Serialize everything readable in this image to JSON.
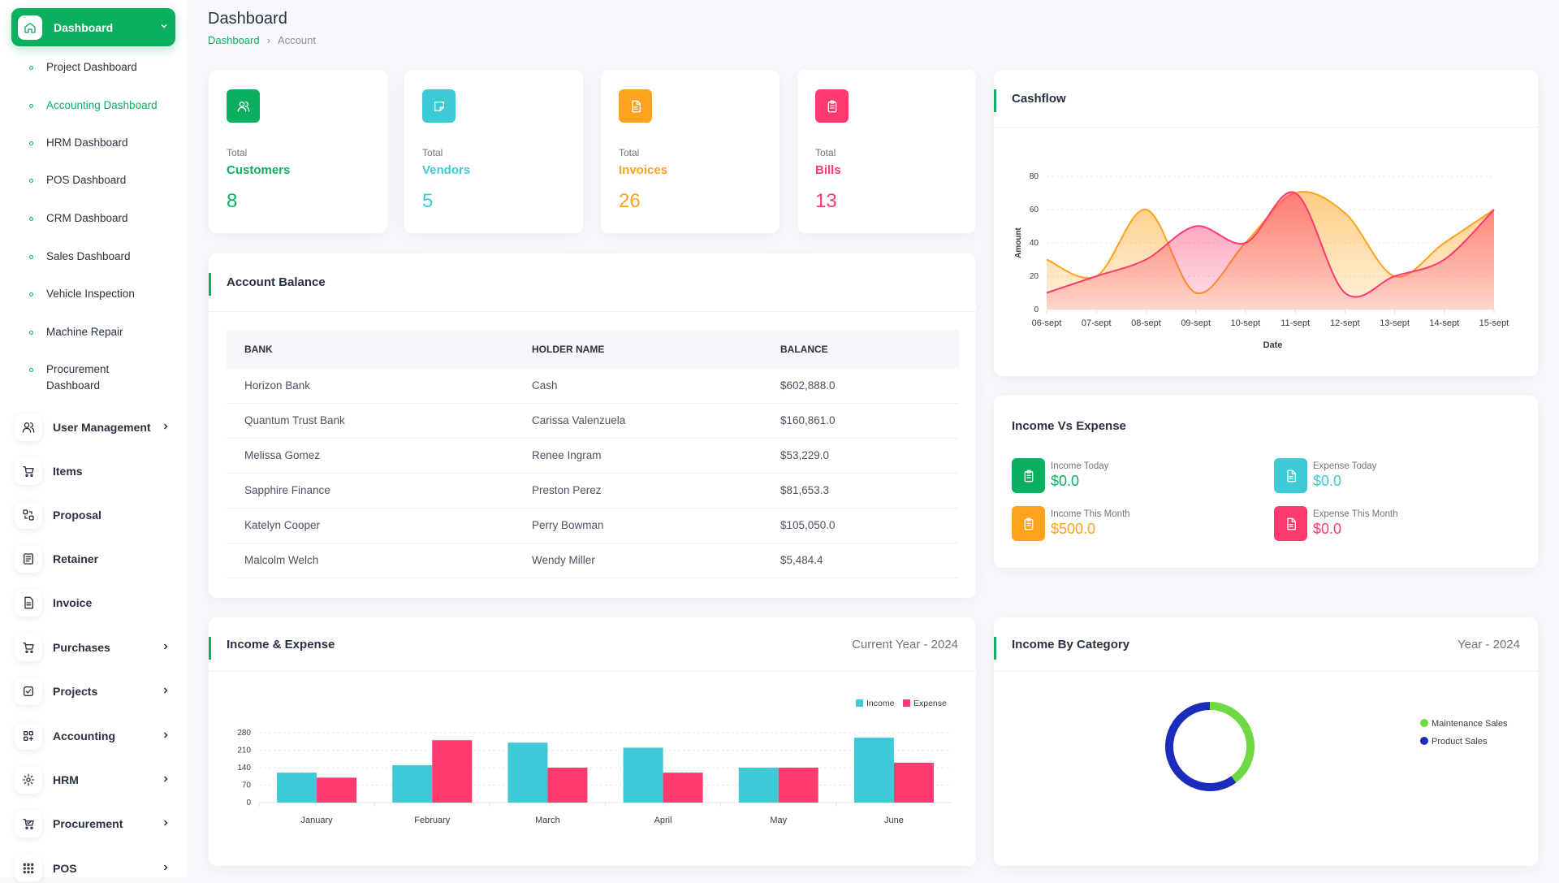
{
  "sidebar": {
    "active": {
      "label": "Dashboard"
    },
    "subitems": [
      {
        "label": "Project Dashboard"
      },
      {
        "label": "Accounting Dashboard"
      },
      {
        "label": "HRM Dashboard"
      },
      {
        "label": "POS Dashboard"
      },
      {
        "label": "CRM Dashboard"
      },
      {
        "label": "Sales Dashboard"
      },
      {
        "label": "Vehicle Inspection"
      },
      {
        "label": "Machine Repair"
      },
      {
        "label": "Procurement Dashboard"
      }
    ],
    "items": [
      {
        "label": "User Management",
        "icon": "users-icon",
        "chevron": true
      },
      {
        "label": "Items",
        "icon": "cart-icon",
        "chevron": false
      },
      {
        "label": "Proposal",
        "icon": "proposal-icon",
        "chevron": false
      },
      {
        "label": "Retainer",
        "icon": "retainer-icon",
        "chevron": false
      },
      {
        "label": "Invoice",
        "icon": "invoice-icon",
        "chevron": false
      },
      {
        "label": "Purchases",
        "icon": "cart-icon",
        "chevron": true
      },
      {
        "label": "Projects",
        "icon": "checkbox-icon",
        "chevron": true
      },
      {
        "label": "Accounting",
        "icon": "grid-icon",
        "chevron": true
      },
      {
        "label": "HRM",
        "icon": "hrm-icon",
        "chevron": true
      },
      {
        "label": "Procurement",
        "icon": "procurement-icon",
        "chevron": true
      },
      {
        "label": "POS",
        "icon": "dots-grid-icon",
        "chevron": true
      }
    ]
  },
  "header": {
    "title": "Dashboard",
    "breadcrumb": [
      "Dashboard",
      "Account"
    ]
  },
  "stats": [
    {
      "small": "Total",
      "name": "Customers",
      "value": "8",
      "color": "#0caf60",
      "icon": "users-icon"
    },
    {
      "small": "Total",
      "name": "Vendors",
      "value": "5",
      "color": "#3ec9d6",
      "icon": "note-icon"
    },
    {
      "small": "Total",
      "name": "Invoices",
      "value": "26",
      "color": "#ffa21d",
      "icon": "file-icon"
    },
    {
      "small": "Total",
      "name": "Bills",
      "value": "13",
      "color": "#ff3a6e",
      "icon": "clipboard-icon"
    }
  ],
  "account_balance": {
    "title": "Account Balance",
    "columns": [
      "BANK",
      "HOLDER NAME",
      "BALANCE"
    ],
    "rows": [
      [
        "Horizon Bank",
        "Cash",
        "$602,888.0"
      ],
      [
        "Quantum Trust Bank",
        "Carissa Valenzuela",
        "$160,861.0"
      ],
      [
        "Melissa Gomez",
        "Renee Ingram",
        "$53,229.0"
      ],
      [
        "Sapphire Finance",
        "Preston Perez",
        "$81,653.3"
      ],
      [
        "Katelyn Cooper",
        "Perry Bowman",
        "$105,050.0"
      ],
      [
        "Malcolm Welch",
        "Wendy Miller",
        "$5,484.4"
      ]
    ]
  },
  "cashflow": {
    "title": "Cashflow"
  },
  "income_vs_expense": {
    "title": "Income Vs Expense",
    "tiles": [
      {
        "label": "Income Today",
        "value": "$0.0",
        "color": "#0caf60",
        "icon": "clipboard-icon"
      },
      {
        "label": "Expense Today",
        "value": "$0.0",
        "color": "#3ec9d6",
        "icon": "file-icon"
      },
      {
        "label": "Income This Month",
        "value": "$500.0",
        "color": "#ffa21d",
        "icon": "clipboard-icon"
      },
      {
        "label": "Expense This Month",
        "value": "$0.0",
        "color": "#ff3a6e",
        "icon": "file-icon"
      }
    ]
  },
  "income_expense": {
    "title": "Income & Expense",
    "period": "Current Year - 2024"
  },
  "income_by_category": {
    "title": "Income By Category",
    "period": "Year - 2024"
  },
  "chart_data": [
    {
      "type": "area",
      "xlabel": "Date",
      "ylabel": "Amount",
      "ylim": [
        0,
        80
      ],
      "yticks": [
        0,
        20,
        40,
        60,
        80
      ],
      "categories": [
        "06-sept",
        "07-sept",
        "08-sept",
        "09-sept",
        "10-sept",
        "11-sept",
        "12-sept",
        "13-sept",
        "14-sept",
        "15-sept"
      ],
      "series": [
        {
          "values": [
            30,
            20,
            60,
            10,
            40,
            70,
            58,
            20,
            40,
            60
          ],
          "color": "#ffa21d"
        },
        {
          "values": [
            10,
            20,
            30,
            50,
            40,
            70,
            10,
            20,
            30,
            60
          ],
          "color": "#ff3a6e"
        }
      ],
      "grid": true
    },
    {
      "type": "bar",
      "categories": [
        "January",
        "February",
        "March",
        "April",
        "May",
        "June"
      ],
      "yticks": [
        0,
        70,
        140,
        210,
        280
      ],
      "ylim": [
        0,
        280
      ],
      "series": [
        {
          "name": "Income",
          "values": [
            120,
            150,
            240,
            220,
            140,
            260
          ],
          "color": "#3ec9d6"
        },
        {
          "name": "Expense",
          "values": [
            100,
            250,
            140,
            120,
            140,
            160
          ],
          "color": "#ff3a6e"
        }
      ],
      "legend": "top-right",
      "grid": true
    },
    {
      "type": "pie",
      "donut": true,
      "series": [
        {
          "name": "Maintenance Sales",
          "value": 40,
          "color": "#6fd943"
        },
        {
          "name": "Product Sales",
          "value": 60,
          "color": "#1b2cbd"
        }
      ],
      "legend": "right"
    }
  ]
}
